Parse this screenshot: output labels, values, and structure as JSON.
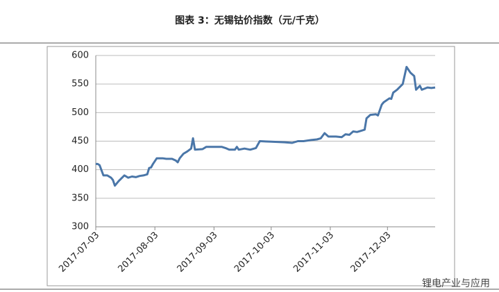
{
  "chart_data": {
    "type": "line",
    "title": "图表 3：无锡钴价指数（元/千克）",
    "watermark": "锂电产业与应用",
    "x": [
      "2017-07-03",
      "2017-07-04",
      "2017-07-05",
      "2017-07-07",
      "2017-07-09",
      "2017-07-11",
      "2017-07-12",
      "2017-07-13",
      "2017-07-15",
      "2017-07-18",
      "2017-07-20",
      "2017-07-22",
      "2017-07-24",
      "2017-07-26",
      "2017-07-28",
      "2017-07-30",
      "2017-07-31",
      "2017-08-01",
      "2017-08-02",
      "2017-08-04",
      "2017-08-07",
      "2017-08-09",
      "2017-08-12",
      "2017-08-14",
      "2017-08-15",
      "2017-08-16",
      "2017-08-18",
      "2017-08-20",
      "2017-08-22",
      "2017-08-23",
      "2017-08-24",
      "2017-08-28",
      "2017-08-30",
      "2017-09-03",
      "2017-09-07",
      "2017-09-09",
      "2017-09-11",
      "2017-09-14",
      "2017-09-15",
      "2017-09-16",
      "2017-09-19",
      "2017-09-22",
      "2017-09-25",
      "2017-09-27",
      "2017-10-03",
      "2017-10-10",
      "2017-10-14",
      "2017-10-17",
      "2017-10-20",
      "2017-10-24",
      "2017-10-27",
      "2017-10-29",
      "2017-10-31",
      "2017-11-02",
      "2017-11-06",
      "2017-11-09",
      "2017-11-11",
      "2017-11-13",
      "2017-11-15",
      "2017-11-17",
      "2017-11-19",
      "2017-11-21",
      "2017-11-22",
      "2017-11-24",
      "2017-11-27",
      "2017-11-28",
      "2017-11-30",
      "2017-12-01",
      "2017-12-04",
      "2017-12-05",
      "2017-12-06",
      "2017-12-08",
      "2017-12-11",
      "2017-12-13",
      "2017-12-15",
      "2017-12-17",
      "2017-12-18",
      "2017-12-20",
      "2017-12-21",
      "2017-12-24",
      "2017-12-26",
      "2017-12-28"
    ],
    "series": [
      {
        "color": "#4a76a8",
        "values": [
          410,
          410,
          408,
          390,
          390,
          386,
          382,
          372,
          380,
          390,
          386,
          388,
          387,
          389,
          390,
          392,
          403,
          404,
          410,
          420,
          420,
          419,
          419,
          416,
          413,
          420,
          428,
          432,
          437,
          455,
          435,
          436,
          440,
          440,
          440,
          438,
          435,
          435,
          440,
          435,
          437,
          435,
          438,
          450,
          449,
          448,
          447,
          450,
          450,
          452,
          453,
          455,
          464,
          458,
          458,
          457,
          462,
          461,
          467,
          466,
          468,
          470,
          490,
          496,
          497,
          495,
          514,
          518,
          525,
          524,
          535,
          540,
          550,
          580,
          570,
          564,
          540,
          547,
          540,
          544,
          543,
          544
        ]
      }
    ],
    "xlim": [
      "2017-07-03",
      "2017-12-28"
    ],
    "xticks": [
      "2017-07-03",
      "2017-08-03",
      "2017-09-03",
      "2017-10-03",
      "2017-11-03",
      "2017-12-03"
    ],
    "ylim": [
      300,
      600
    ],
    "yticks": [
      300,
      350,
      400,
      450,
      500,
      550,
      600
    ],
    "grid": true
  }
}
